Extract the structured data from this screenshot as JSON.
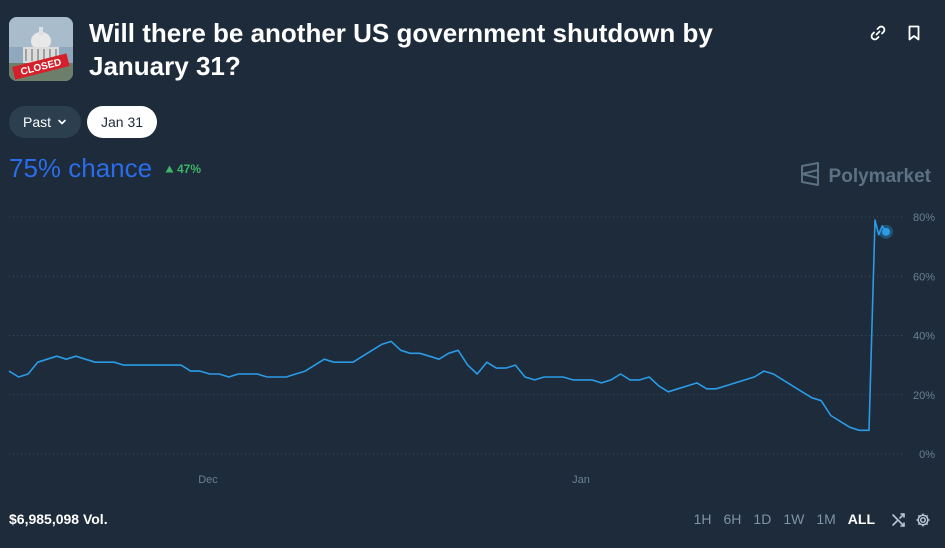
{
  "market": {
    "title": "Will there be another US government shutdown by January 31?",
    "thumbnail_stamp": "CLOSED"
  },
  "filters": {
    "past_label": "Past",
    "date_label": "Jan 31"
  },
  "headline": {
    "chance": "75% chance",
    "delta": "47%"
  },
  "brand": {
    "name": "Polymarket"
  },
  "footer": {
    "volume": "$6,985,098 Vol.",
    "ranges": [
      "1H",
      "6H",
      "1D",
      "1W",
      "1M",
      "ALL"
    ],
    "active_range": "ALL"
  },
  "colors": {
    "line": "#2b9be6",
    "chance": "#2b6ce8",
    "up": "#3db468",
    "background": "#1d2b3b"
  },
  "icons": [
    "link-icon",
    "bookmark-icon",
    "chevron-down-icon",
    "triangle-up-icon",
    "polymarket-logo-icon",
    "shuffle-icon",
    "gear-icon"
  ],
  "chart_data": {
    "type": "line",
    "x_ticks": [
      "Dec",
      "Jan"
    ],
    "y_ticks": [
      "80%",
      "60%",
      "40%",
      "20%",
      "0%"
    ],
    "ylim": [
      0,
      80
    ],
    "grid": true,
    "series": [
      {
        "values": [
          28,
          26,
          27,
          31,
          32,
          33,
          32,
          33,
          32,
          31,
          31,
          31,
          30,
          30,
          30,
          30,
          30,
          30,
          30,
          28,
          28,
          27,
          27,
          26,
          27,
          27,
          27,
          26,
          26,
          26,
          27,
          28,
          30,
          32,
          31,
          31,
          31,
          33,
          35,
          37,
          38,
          35,
          34,
          34,
          33,
          32,
          34,
          35,
          30,
          27,
          31,
          29,
          29,
          30,
          26,
          25,
          26,
          26,
          26,
          25,
          25,
          25,
          24,
          25,
          27,
          25,
          25,
          26,
          23,
          21,
          22,
          23,
          24,
          22,
          22,
          23,
          24,
          25,
          26,
          28,
          27,
          25,
          23,
          21,
          19,
          18,
          13,
          11,
          9,
          8,
          8,
          79,
          74,
          77,
          75
        ]
      }
    ]
  }
}
